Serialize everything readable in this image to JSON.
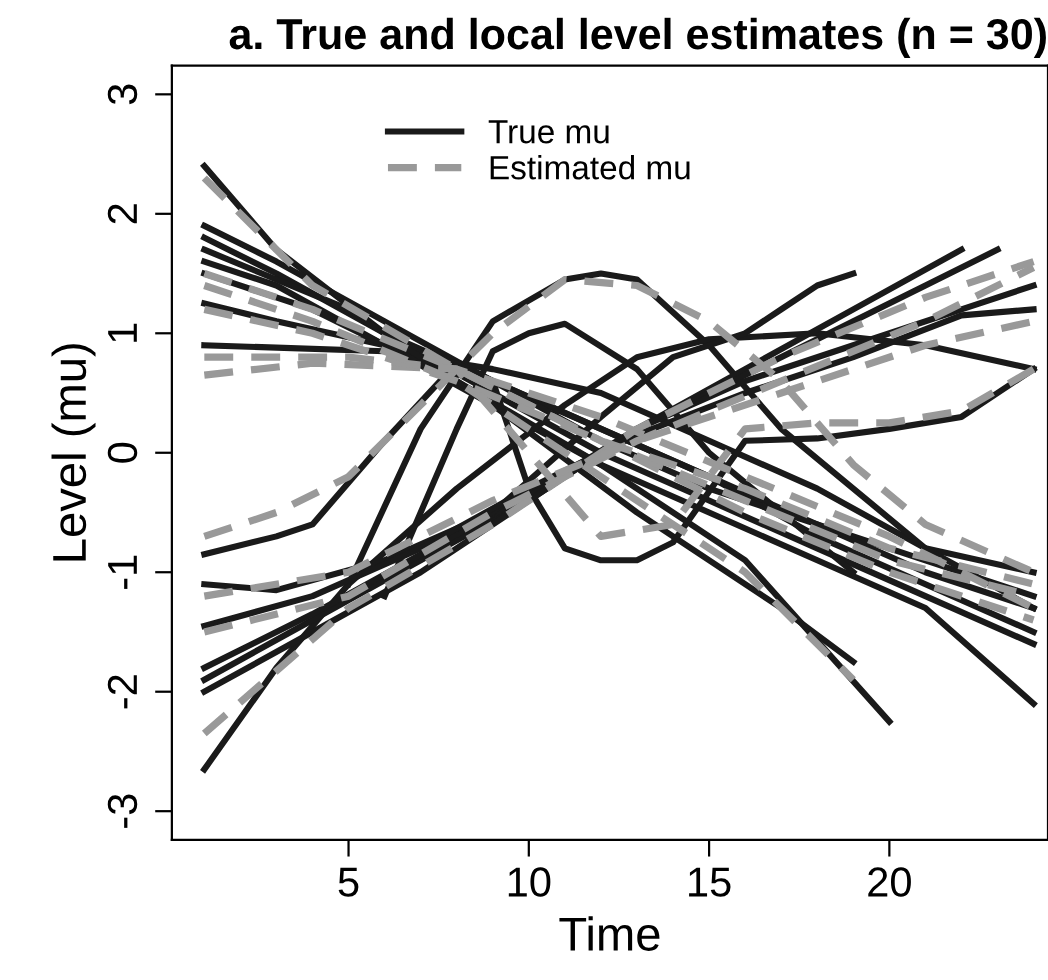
{
  "chart_data": {
    "type": "line",
    "title": "a. True and local level estimates (n = 30)",
    "xlabel": "Time",
    "ylabel": "Level (mu)",
    "xlim": [
      0.1,
      24.4
    ],
    "ylim": [
      -3.24,
      3.24
    ],
    "xticks": [
      5,
      10,
      15,
      20
    ],
    "yticks": [
      -3,
      -2,
      -1,
      0,
      1,
      2,
      3
    ],
    "grid": false,
    "legend": "top",
    "marker": "none",
    "series": [
      {
        "name": "True mu",
        "color": "#1a1a1a",
        "line_style": "solid",
        "x": [
          1,
          3,
          6,
          9,
          12,
          15,
          18,
          21,
          24
        ],
        "values": [
          2.4,
          1.7,
          1.0,
          0.6,
          0.2,
          -0.2,
          -0.7,
          -1.1,
          -1.5
        ]
      },
      {
        "color": "#1a1a1a",
        "line_style": "solid",
        "x": [
          1,
          3,
          6,
          9,
          12,
          15,
          18,
          21,
          24
        ],
        "values": [
          1.9,
          1.6,
          1.1,
          0.6,
          0.2,
          -0.2,
          -0.6,
          -0.9,
          -1.2
        ]
      },
      {
        "color": "#1a1a1a",
        "line_style": "solid",
        "x": [
          1,
          3,
          6,
          9,
          12,
          15,
          18,
          21,
          24
        ],
        "values": [
          1.8,
          1.5,
          1.0,
          0.5,
          0.0,
          -0.4,
          -0.8,
          -1.2,
          -1.6
        ]
      },
      {
        "color": "#1a1a1a",
        "line_style": "solid",
        "x": [
          1,
          3,
          6,
          9,
          12,
          15,
          18,
          21,
          24
        ],
        "values": [
          1.6,
          1.4,
          0.9,
          0.4,
          -0.1,
          -0.5,
          -0.9,
          -1.3,
          -2.1
        ]
      },
      {
        "color": "#1a1a1a",
        "line_style": "solid",
        "x": [
          1,
          3,
          6,
          9,
          12,
          15,
          18,
          21,
          24
        ],
        "values": [
          1.25,
          1.1,
          0.9,
          0.6,
          0.1,
          -0.3,
          -0.6,
          -1.0,
          -1.3
        ]
      },
      {
        "color": "#1a1a1a",
        "line_style": "solid",
        "x": [
          1,
          3,
          6,
          9,
          12,
          15,
          18,
          21,
          24
        ],
        "values": [
          0.9,
          0.88,
          0.85,
          0.7,
          0.5,
          0.1,
          -0.3,
          -0.8,
          -1.0
        ]
      },
      {
        "color": "#1a1a1a",
        "line_style": "solid",
        "x": [
          1,
          4,
          8,
          12,
          16,
          20
        ],
        "values": [
          1.5,
          1.2,
          0.6,
          -0.1,
          -0.9,
          -2.25
        ]
      },
      {
        "color": "#1a1a1a",
        "line_style": "solid",
        "x": [
          1,
          5,
          9,
          13,
          17,
          19
        ],
        "values": [
          1.7,
          1.2,
          0.4,
          -0.5,
          -1.3,
          -1.75
        ]
      },
      {
        "color": "#1a1a1a",
        "line_style": "solid",
        "x": [
          5,
          7,
          9,
          11,
          12,
          13,
          15,
          17,
          19,
          21,
          24
        ],
        "values": [
          -1.1,
          0.2,
          1.1,
          1.45,
          1.5,
          1.45,
          0.9,
          0.2,
          -0.3,
          -0.8,
          -1.3
        ]
      },
      {
        "color": "#1a1a1a",
        "line_style": "solid",
        "x": [
          6,
          8,
          9,
          10,
          11,
          13,
          15,
          17,
          19
        ],
        "values": [
          -1.2,
          0.2,
          0.85,
          1.0,
          1.08,
          0.7,
          0.0,
          -0.5,
          -1.0
        ]
      },
      {
        "color": "#1a1a1a",
        "line_style": "solid",
        "x": [
          1,
          3,
          4,
          6,
          8,
          9,
          10,
          11,
          12,
          13,
          14,
          16,
          18,
          20,
          22,
          23,
          24
        ],
        "values": [
          -0.85,
          -0.7,
          -0.6,
          0.1,
          0.75,
          0.6,
          -0.3,
          -0.8,
          -0.9,
          -0.9,
          -0.75,
          0.1,
          0.12,
          0.2,
          0.3,
          0.5,
          0.7
        ]
      },
      {
        "color": "#1a1a1a",
        "line_style": "solid",
        "x": [
          1,
          3,
          5,
          8,
          11,
          13,
          15,
          18,
          21,
          24
        ],
        "values": [
          -2.65,
          -1.8,
          -1.1,
          -0.3,
          0.4,
          0.8,
          0.95,
          1.0,
          0.9,
          0.7
        ]
      },
      {
        "color": "#1a1a1a",
        "line_style": "solid",
        "x": [
          1,
          4,
          7,
          10,
          13,
          16,
          19,
          22
        ],
        "values": [
          -1.9,
          -1.4,
          -0.9,
          -0.4,
          0.2,
          0.7,
          1.2,
          1.7
        ]
      },
      {
        "color": "#1a1a1a",
        "line_style": "solid",
        "x": [
          1,
          4,
          7,
          10,
          13,
          16,
          19,
          21,
          23
        ],
        "values": [
          -1.8,
          -1.35,
          -0.85,
          -0.35,
          0.2,
          0.65,
          1.1,
          1.4,
          1.7
        ]
      },
      {
        "color": "#1a1a1a",
        "line_style": "solid",
        "x": [
          1,
          3,
          6,
          9,
          12,
          14,
          16,
          17,
          18,
          19
        ],
        "values": [
          -1.1,
          -1.15,
          -0.9,
          -0.5,
          0.3,
          0.8,
          1.0,
          1.2,
          1.4,
          1.5
        ]
      },
      {
        "color": "#1a1a1a",
        "line_style": "solid",
        "x": [
          1,
          4,
          7,
          10,
          13,
          16,
          19,
          22,
          24
        ],
        "values": [
          -2.0,
          -1.5,
          -1.0,
          -0.4,
          0.2,
          0.6,
          0.9,
          1.2,
          1.4
        ]
      },
      {
        "color": "#1a1a1a",
        "line_style": "solid",
        "x": [
          1,
          4,
          7,
          10,
          13,
          16,
          19,
          22,
          24
        ],
        "values": [
          -1.45,
          -1.2,
          -0.8,
          -0.3,
          0.15,
          0.5,
          0.8,
          1.15,
          1.2
        ]
      },
      {
        "name": "Estimated mu",
        "color": "#999999",
        "line_style": "dashed",
        "x": [
          1,
          4,
          8,
          12,
          16,
          20,
          24
        ],
        "values": [
          2.3,
          1.4,
          0.7,
          0.1,
          -0.5,
          -1.0,
          -1.4
        ]
      },
      {
        "color": "#999999",
        "line_style": "dashed",
        "x": [
          1,
          4,
          8,
          12,
          16,
          20,
          24
        ],
        "values": [
          1.5,
          1.2,
          0.7,
          0.1,
          -0.4,
          -0.9,
          -1.2
        ]
      },
      {
        "color": "#999999",
        "line_style": "dashed",
        "x": [
          1,
          4,
          8,
          12,
          16,
          20,
          24
        ],
        "values": [
          1.2,
          1.0,
          0.6,
          0.1,
          -0.3,
          -0.8,
          -1.1
        ]
      },
      {
        "color": "#999999",
        "line_style": "dashed",
        "x": [
          1,
          4,
          8,
          12,
          16,
          20,
          24
        ],
        "values": [
          0.65,
          0.75,
          0.7,
          0.3,
          -0.2,
          -0.7,
          -1.3
        ]
      },
      {
        "color": "#999999",
        "line_style": "dashed",
        "x": [
          1,
          3,
          5,
          7,
          9,
          11,
          13,
          15,
          17,
          19,
          21,
          24
        ],
        "values": [
          -0.7,
          -0.5,
          -0.2,
          0.4,
          1.0,
          1.45,
          1.4,
          1.1,
          0.6,
          -0.1,
          -0.6,
          -1.0
        ]
      },
      {
        "color": "#999999",
        "line_style": "dashed",
        "x": [
          1,
          5,
          9,
          13,
          17,
          21,
          24
        ],
        "values": [
          -1.5,
          -1.2,
          -0.5,
          0.1,
          0.6,
          1.1,
          1.55
        ]
      },
      {
        "color": "#999999",
        "line_style": "dashed",
        "x": [
          1,
          5,
          9,
          13,
          17,
          21,
          24
        ],
        "values": [
          -2.35,
          -1.3,
          -0.6,
          0.2,
          0.8,
          1.3,
          1.6
        ]
      },
      {
        "color": "#999999",
        "line_style": "dashed",
        "x": [
          1,
          5,
          9,
          13,
          17,
          21,
          24
        ],
        "values": [
          -1.2,
          -1.0,
          -0.4,
          0.1,
          0.5,
          0.9,
          1.1
        ]
      },
      {
        "color": "#999999",
        "line_style": "dashed",
        "x": [
          1,
          5,
          8,
          10,
          12,
          14,
          16,
          18,
          20,
          22,
          24
        ],
        "values": [
          0.8,
          0.8,
          0.7,
          0.0,
          -0.7,
          -0.6,
          0.2,
          0.25,
          0.25,
          0.35,
          0.7
        ]
      },
      {
        "color": "#999999",
        "line_style": "dashed",
        "x": [
          1,
          4,
          8,
          12,
          16,
          19
        ],
        "values": [
          1.4,
          1.1,
          0.6,
          -0.2,
          -1.0,
          -1.9
        ]
      }
    ]
  }
}
